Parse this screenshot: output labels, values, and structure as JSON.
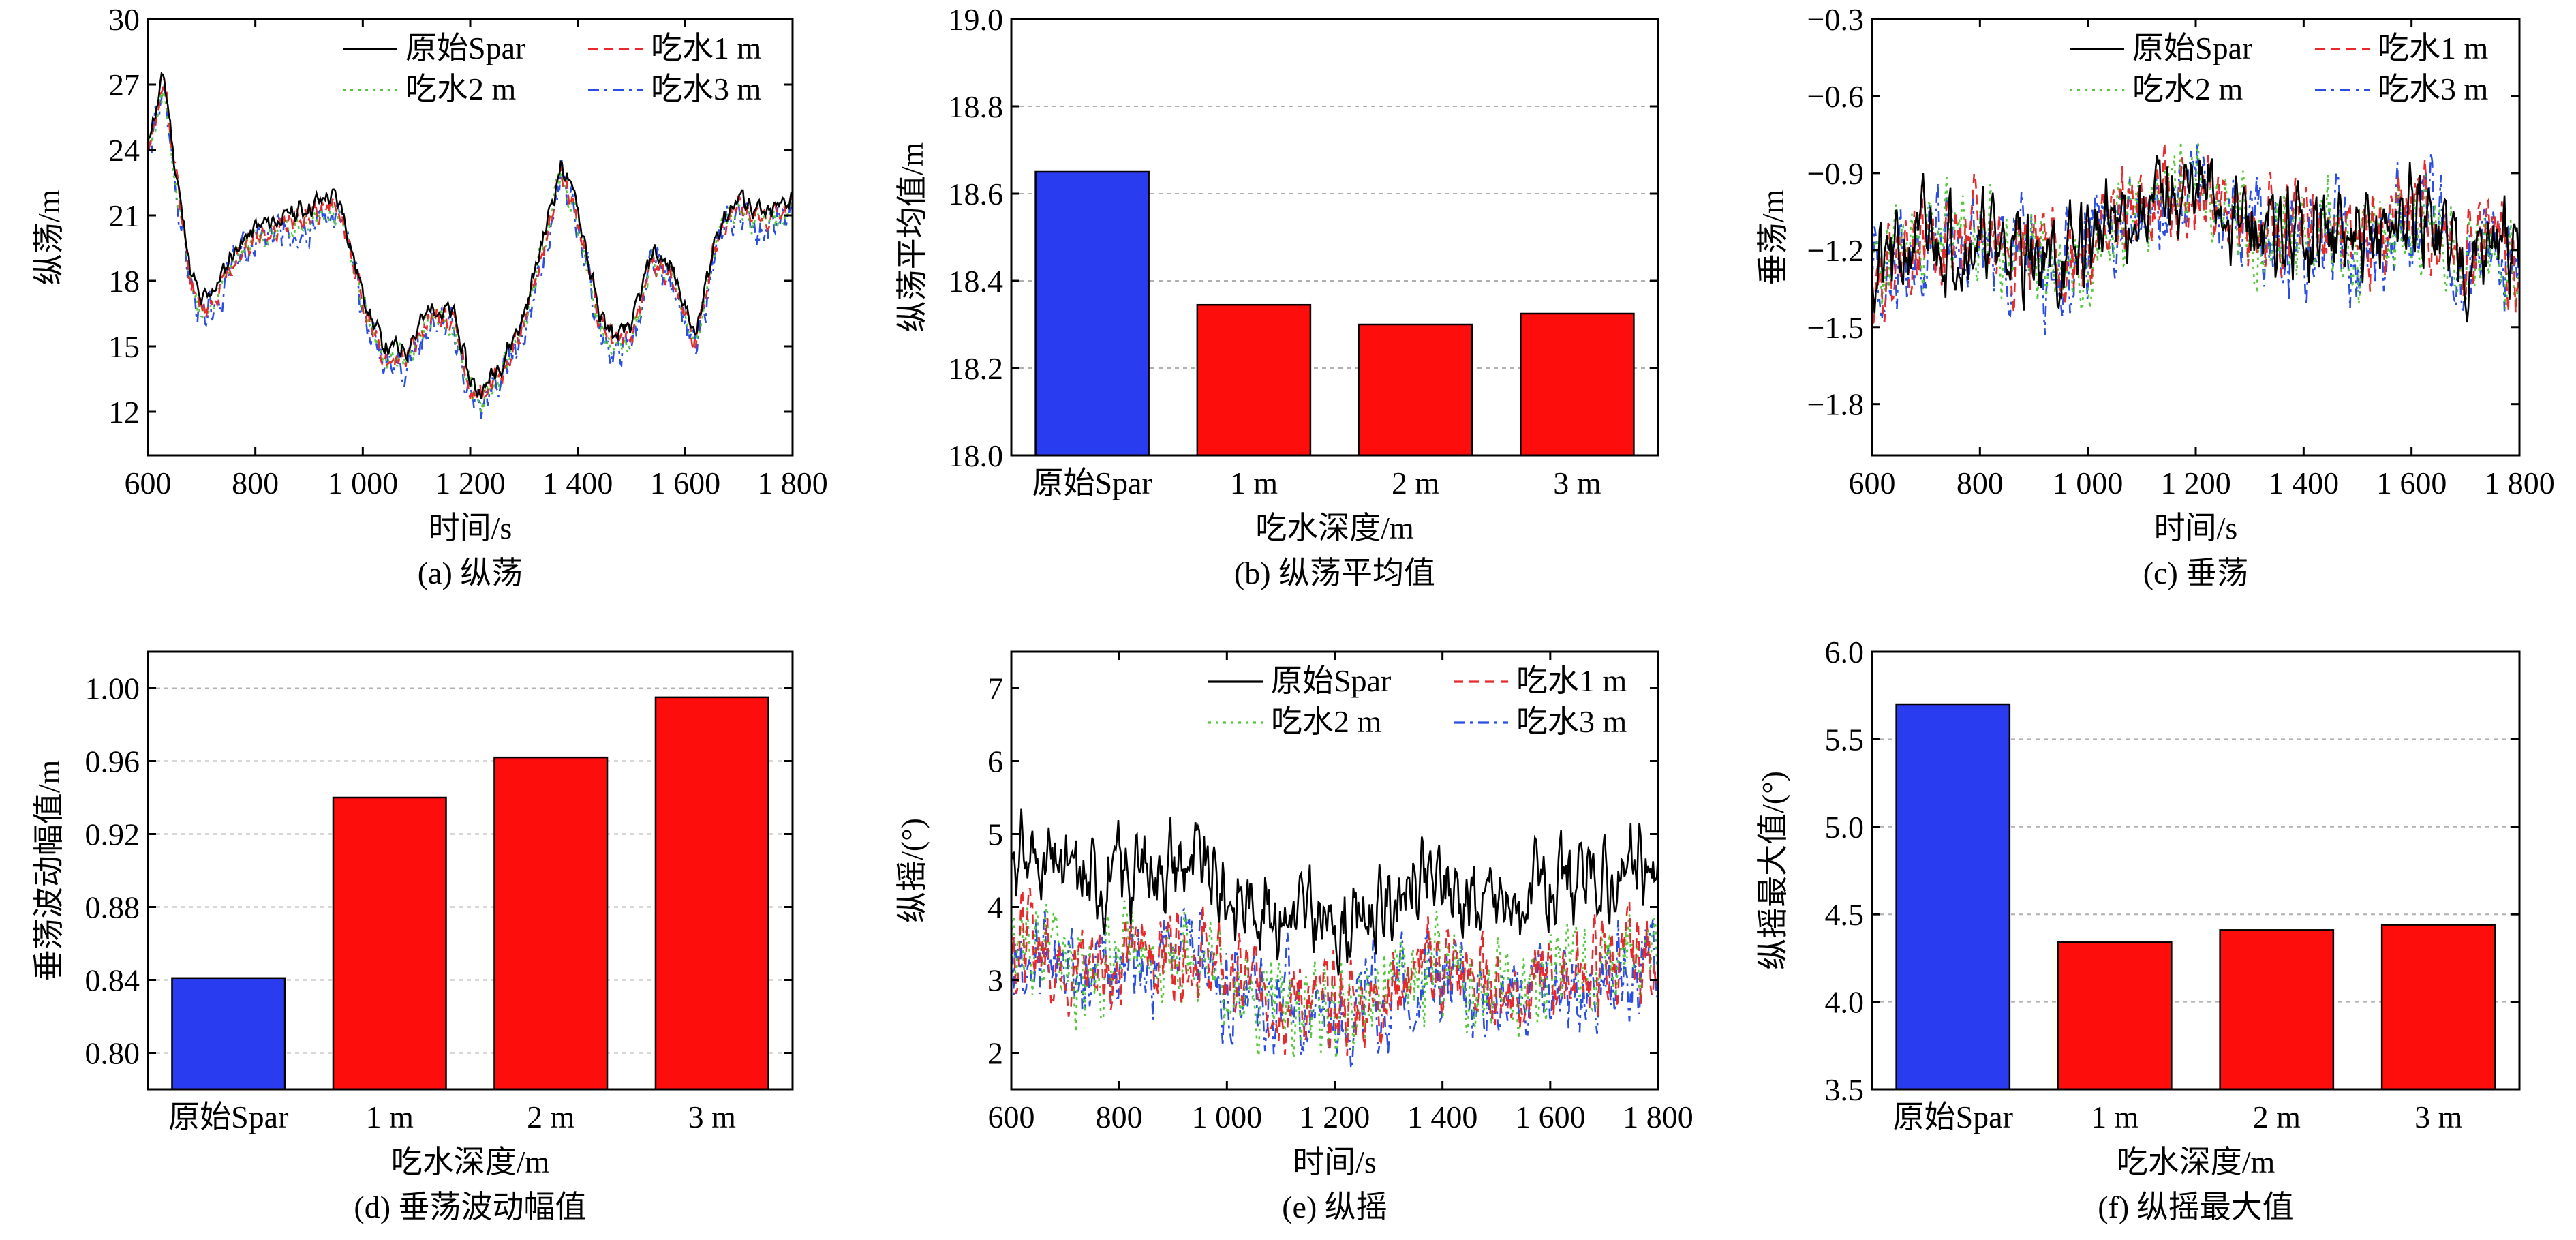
{
  "chart_data": [
    {
      "id": "a",
      "type": "line",
      "caption": "(a) 纵荡",
      "xlabel": "时间/s",
      "ylabel": "纵荡/m",
      "xlim": [
        600,
        1800
      ],
      "ylim": [
        10,
        30
      ],
      "xticks": [
        600,
        800,
        1000,
        1200,
        1400,
        1600,
        1800
      ],
      "xtick_labels": [
        "600",
        "800",
        "1 000",
        "1 200",
        "1 400",
        "1 600",
        "1 800"
      ],
      "yticks": [
        12,
        15,
        18,
        21,
        24,
        27,
        30
      ],
      "ytick_labels": [
        "12",
        "15",
        "18",
        "21",
        "24",
        "27",
        "30"
      ],
      "legend_position": "top-right",
      "base_points": {
        "x": [
          600,
          620,
          630,
          650,
          680,
          700,
          730,
          760,
          800,
          850,
          900,
          940,
          960,
          1000,
          1040,
          1080,
          1130,
          1170,
          1200,
          1220,
          1260,
          1300,
          1340,
          1370,
          1400,
          1440,
          1470,
          1500,
          1540,
          1580,
          1620,
          1660,
          1700,
          1750,
          1800
        ],
        "y": [
          24,
          26,
          27,
          23,
          18,
          16.5,
          17.5,
          19,
          20,
          20.5,
          21,
          21.5,
          21,
          17,
          14.5,
          14.5,
          16.5,
          16,
          13,
          12.5,
          14,
          16,
          20,
          23,
          21,
          16,
          15,
          15.5,
          19,
          18,
          15,
          20,
          21.5,
          20.5,
          21.5
        ]
      },
      "series": [
        {
          "name": "原始Spar",
          "color": "#000000",
          "dash": "solid",
          "offset": 0.4,
          "noise": 0.45,
          "seed": 11
        },
        {
          "name": "吃水1 m",
          "color": "#e8292b",
          "dash": "dashed",
          "offset": 0.0,
          "noise": 0.55,
          "seed": 12
        },
        {
          "name": "吃水2 m",
          "color": "#52c83a",
          "dash": "dotted",
          "offset": -0.1,
          "noise": 0.55,
          "seed": 13
        },
        {
          "name": "吃水3 m",
          "color": "#2a4ee3",
          "dash": "dashdot",
          "offset": -0.3,
          "noise": 0.8,
          "seed": 14
        }
      ]
    },
    {
      "id": "b",
      "type": "bar",
      "caption": "(b) 纵荡平均值",
      "xlabel": "吃水深度/m",
      "ylabel": "纵荡平均值/m",
      "categories": [
        "原始Spar",
        "1 m",
        "2 m",
        "3 m"
      ],
      "values": [
        18.65,
        18.345,
        18.3,
        18.325
      ],
      "colors": [
        "#2a3cf0",
        "#fe0d0d",
        "#fe0d0d",
        "#fe0d0d"
      ],
      "ylim": [
        18.0,
        19.0
      ],
      "yticks": [
        18.0,
        18.2,
        18.4,
        18.6,
        18.8,
        19.0
      ],
      "ytick_labels": [
        "18.0",
        "18.2",
        "18.4",
        "18.6",
        "18.8",
        "19.0"
      ],
      "grid": true
    },
    {
      "id": "c",
      "type": "line",
      "caption": "(c) 垂荡",
      "xlabel": "时间/s",
      "ylabel": "垂荡/m",
      "xlim": [
        600,
        1800
      ],
      "ylim": [
        -2.0,
        -0.3
      ],
      "xticks": [
        600,
        800,
        1000,
        1200,
        1400,
        1600,
        1800
      ],
      "xtick_labels": [
        "600",
        "800",
        "1 000",
        "1 200",
        "1 400",
        "1 600",
        "1 800"
      ],
      "yticks": [
        -1.8,
        -1.5,
        -1.2,
        -0.9,
        -0.6,
        -0.3
      ],
      "ytick_labels": [
        "−1.8",
        "−1.5",
        "−1.2",
        "−0.9",
        "−0.6",
        "−0.3"
      ],
      "legend_position": "top-right",
      "base_points": {
        "x": [
          600,
          650,
          700,
          800,
          900,
          950,
          1000,
          1100,
          1150,
          1200,
          1250,
          1300,
          1350,
          1400,
          1450,
          1500,
          1550,
          1600,
          1650,
          1700,
          1750,
          1800
        ],
        "y": [
          -1.3,
          -1.22,
          -1.15,
          -1.17,
          -1.2,
          -1.27,
          -1.15,
          -1.05,
          -1.0,
          -0.97,
          -1.03,
          -1.12,
          -1.17,
          -1.12,
          -1.13,
          -1.2,
          -1.12,
          -1.06,
          -1.12,
          -1.22,
          -1.17,
          -1.28
        ]
      },
      "series": [
        {
          "name": "原始Spar",
          "color": "#000000",
          "dash": "solid",
          "offset": 0.0,
          "noise": 0.17,
          "seed": 21
        },
        {
          "name": "吃水1 m",
          "color": "#e8292b",
          "dash": "dashed",
          "offset": 0.01,
          "noise": 0.17,
          "seed": 22
        },
        {
          "name": "吃水2 m",
          "color": "#52c83a",
          "dash": "dotted",
          "offset": 0.0,
          "noise": 0.18,
          "seed": 23
        },
        {
          "name": "吃水3 m",
          "color": "#2a4ee3",
          "dash": "dashdot",
          "offset": -0.02,
          "noise": 0.2,
          "seed": 24
        }
      ]
    },
    {
      "id": "d",
      "type": "bar",
      "caption": "(d) 垂荡波动幅值",
      "xlabel": "吃水深度/m",
      "ylabel": "垂荡波动幅值/m",
      "categories": [
        "原始Spar",
        "1 m",
        "2 m",
        "3 m"
      ],
      "values": [
        0.841,
        0.94,
        0.962,
        0.995
      ],
      "colors": [
        "#2a3cf0",
        "#fe0d0d",
        "#fe0d0d",
        "#fe0d0d"
      ],
      "ylim": [
        0.78,
        1.02
      ],
      "yticks": [
        0.8,
        0.84,
        0.88,
        0.92,
        0.96,
        1.0
      ],
      "ytick_labels": [
        "0.80",
        "0.84",
        "0.88",
        "0.92",
        "0.96",
        "1.00"
      ],
      "grid": true
    },
    {
      "id": "e",
      "type": "line",
      "caption": "(e) 纵摇",
      "xlabel": "时间/s",
      "ylabel": "纵摇/(°)",
      "xlim": [
        600,
        1800
      ],
      "ylim": [
        1.5,
        7.5
      ],
      "xticks": [
        600,
        800,
        1000,
        1200,
        1400,
        1600,
        1800
      ],
      "xtick_labels": [
        "600",
        "800",
        "1 000",
        "1 200",
        "1 400",
        "1 600",
        "1 800"
      ],
      "yticks": [
        2,
        3,
        4,
        5,
        6,
        7
      ],
      "ytick_labels": [
        "2",
        "3",
        "4",
        "5",
        "6",
        "7"
      ],
      "legend_position": "top-right",
      "base_points": {
        "x": [
          600,
          650,
          700,
          750,
          800,
          850,
          900,
          950,
          1000,
          1050,
          1100,
          1150,
          1200,
          1250,
          1300,
          1350,
          1400,
          1450,
          1500,
          1550,
          1600,
          1650,
          1700,
          1750,
          1800
        ],
        "y": [
          3.6,
          3.5,
          3.3,
          3.2,
          3.3,
          3.4,
          3.5,
          3.4,
          3.0,
          2.9,
          2.8,
          2.7,
          2.6,
          2.7,
          2.9,
          3.1,
          3.2,
          3.0,
          2.9,
          2.9,
          3.0,
          3.1,
          3.2,
          3.3,
          3.3
        ]
      },
      "series": [
        {
          "name": "原始Spar",
          "color": "#000000",
          "dash": "solid",
          "offset": 1.15,
          "noise": 0.55,
          "seed": 31
        },
        {
          "name": "吃水1 m",
          "color": "#e8292b",
          "dash": "dashed",
          "offset": 0.0,
          "noise": 0.6,
          "seed": 32
        },
        {
          "name": "吃水2 m",
          "color": "#52c83a",
          "dash": "dotted",
          "offset": -0.05,
          "noise": 0.6,
          "seed": 33
        },
        {
          "name": "吃水3 m",
          "color": "#2a4ee3",
          "dash": "dashdot",
          "offset": -0.1,
          "noise": 0.65,
          "seed": 34
        }
      ]
    },
    {
      "id": "f",
      "type": "bar",
      "caption": "(f) 纵摇最大值",
      "xlabel": "吃水深度/m",
      "ylabel": "纵摇最大值/(°)",
      "categories": [
        "原始Spar",
        "1 m",
        "2 m",
        "3 m"
      ],
      "values": [
        5.7,
        4.34,
        4.41,
        4.44
      ],
      "colors": [
        "#2a3cf0",
        "#fe0d0d",
        "#fe0d0d",
        "#fe0d0d"
      ],
      "ylim": [
        3.5,
        6.0
      ],
      "yticks": [
        3.5,
        4.0,
        4.5,
        5.0,
        5.5,
        6.0
      ],
      "ytick_labels": [
        "3.5",
        "4.0",
        "4.5",
        "5.0",
        "5.5",
        "6.0"
      ],
      "grid": true
    }
  ]
}
